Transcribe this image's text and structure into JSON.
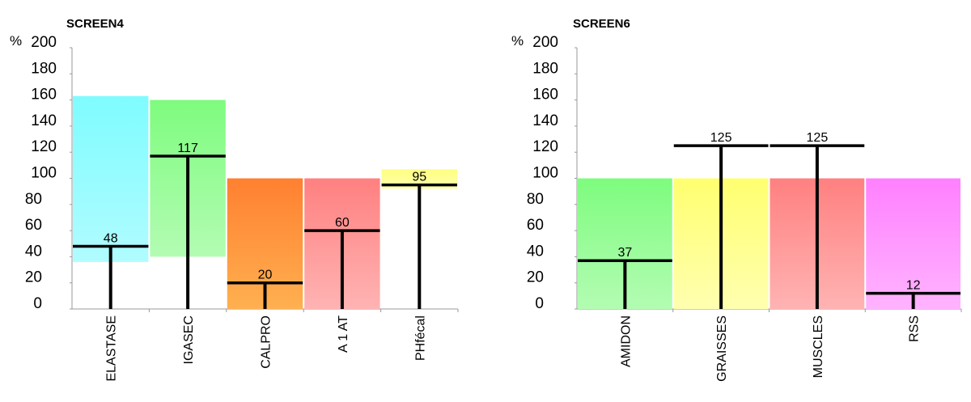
{
  "chart_data": [
    {
      "type": "bar",
      "title": "SCREEN4",
      "ylabel": "%",
      "ylim": [
        0,
        200
      ],
      "yticks": [
        "0",
        "20",
        "40",
        "60",
        "80",
        "100",
        "120",
        "140",
        "160",
        "180",
        "200"
      ],
      "grid": false,
      "categories": [
        "ELASTASE",
        "IGASEC",
        "CALPRO",
        "A 1 AT",
        "PHfécal"
      ],
      "values": [
        48,
        117,
        20,
        60,
        95
      ],
      "value_labels": [
        "48",
        "117",
        "20",
        "60",
        "95"
      ],
      "ranges": [
        [
          36,
          163
        ],
        [
          40,
          160
        ],
        [
          0,
          100
        ],
        [
          0,
          100
        ],
        [
          92,
          107
        ]
      ],
      "colors": [
        [
          "#7ffcff",
          "#b0fcff"
        ],
        [
          "#7efc7e",
          "#b3fcb3"
        ],
        [
          "#ff8030",
          "#ffb050"
        ],
        [
          "#ff8080",
          "#ffb3b3"
        ],
        [
          "#ffff80",
          "#ffffb0"
        ]
      ]
    },
    {
      "type": "bar",
      "title": "SCREEN6",
      "ylabel": "%",
      "ylim": [
        0,
        200
      ],
      "yticks": [
        "0",
        "20",
        "40",
        "60",
        "80",
        "100",
        "120",
        "140",
        "160",
        "180",
        "200"
      ],
      "grid": false,
      "categories": [
        "AMIDON",
        "GRAISSES",
        "MUSCLES",
        "RSS"
      ],
      "values": [
        37,
        125,
        125,
        12
      ],
      "value_labels": [
        "37",
        "125",
        "125",
        "12"
      ],
      "ranges": [
        [
          0,
          100
        ],
        [
          0,
          100
        ],
        [
          0,
          100
        ],
        [
          0,
          100
        ]
      ],
      "colors": [
        [
          "#7efc7e",
          "#b3fcb3"
        ],
        [
          "#ffff70",
          "#ffffb0"
        ],
        [
          "#ff8080",
          "#ffb3b3"
        ],
        [
          "#ff80ff",
          "#ffb3ff"
        ]
      ]
    }
  ]
}
